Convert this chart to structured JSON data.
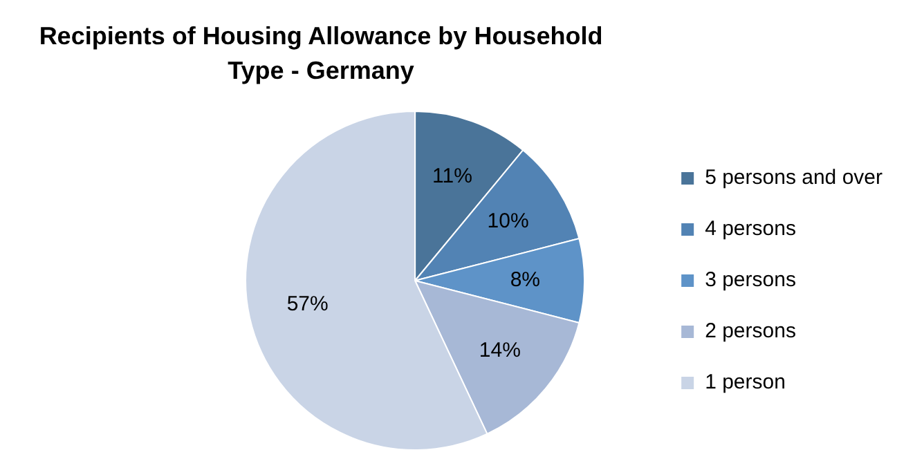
{
  "chart_data": {
    "type": "pie",
    "title": "Recipients of Housing Allowance by Household Type - Germany",
    "categories": [
      "5 persons and over",
      "4 persons",
      "3 persons",
      "2 persons",
      "1 person"
    ],
    "values": [
      11,
      10,
      8,
      14,
      57
    ],
    "colors": [
      "#4a7499",
      "#5283b4",
      "#5e93c8",
      "#a7b8d6",
      "#c9d4e6"
    ],
    "value_labels": [
      "11%",
      "10%",
      "8%",
      "14%",
      "57%"
    ],
    "legend": "right"
  }
}
